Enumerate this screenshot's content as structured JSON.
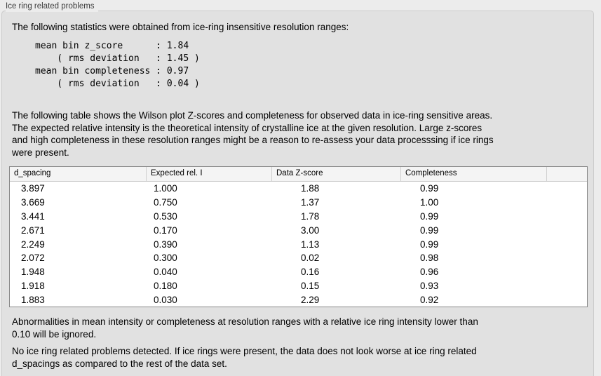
{
  "panel": {
    "title": "Ice ring related problems"
  },
  "colors": {
    "window_bg": "#ececec",
    "groupbox_bg": "#e1e1e1",
    "table_header_bg": "#f4f4f4",
    "table_bg": "#ffffff"
  },
  "intro": "The following statistics were obtained from ice-ring insensitive resolution ranges:",
  "stats_block": {
    "lines": [
      "mean bin z_score      : 1.84",
      "    ( rms deviation   : 1.45 )",
      "mean bin completeness : 0.97",
      "    ( rms deviation   : 0.04 )"
    ]
  },
  "description": {
    "lines": [
      "The following table shows the Wilson plot Z-scores and completeness for observed data in ice-ring sensitive areas.",
      "The expected relative intensity is the theoretical intensity of crystalline ice at the given resolution. Large z-scores",
      "and high completeness in these resolution ranges might be a reason to re-assess your data processsing if ice rings",
      "were present."
    ]
  },
  "table": {
    "columns": [
      "d_spacing",
      "Expected rel. I",
      "Data Z-score",
      "Completeness"
    ],
    "rows": [
      {
        "d_spacing": "3.897",
        "expected_rel_i": "1.000",
        "data_z_score": "1.88",
        "completeness": "0.99"
      },
      {
        "d_spacing": "3.669",
        "expected_rel_i": "0.750",
        "data_z_score": "1.37",
        "completeness": "1.00"
      },
      {
        "d_spacing": "3.441",
        "expected_rel_i": "0.530",
        "data_z_score": "1.78",
        "completeness": "0.99"
      },
      {
        "d_spacing": "2.671",
        "expected_rel_i": "0.170",
        "data_z_score": "3.00",
        "completeness": "0.99"
      },
      {
        "d_spacing": "2.249",
        "expected_rel_i": "0.390",
        "data_z_score": "1.13",
        "completeness": "0.99"
      },
      {
        "d_spacing": "2.072",
        "expected_rel_i": "0.300",
        "data_z_score": "0.02",
        "completeness": "0.98"
      },
      {
        "d_spacing": "1.948",
        "expected_rel_i": "0.040",
        "data_z_score": "0.16",
        "completeness": "0.96"
      },
      {
        "d_spacing": "1.918",
        "expected_rel_i": "0.180",
        "data_z_score": "0.15",
        "completeness": "0.93"
      },
      {
        "d_spacing": "1.883",
        "expected_rel_i": "0.030",
        "data_z_score": "2.29",
        "completeness": "0.92"
      }
    ]
  },
  "notes": {
    "ignore_note": {
      "lines": [
        "Abnormalities in mean intensity or completeness at resolution ranges with a relative ice ring intensity lower than",
        "0.10 will be ignored."
      ]
    },
    "conclusion": {
      "lines": [
        "No ice ring related problems detected. If ice rings were present, the data does not look worse at ice ring related",
        "d_spacings as compared to the rest of the data set."
      ]
    }
  }
}
